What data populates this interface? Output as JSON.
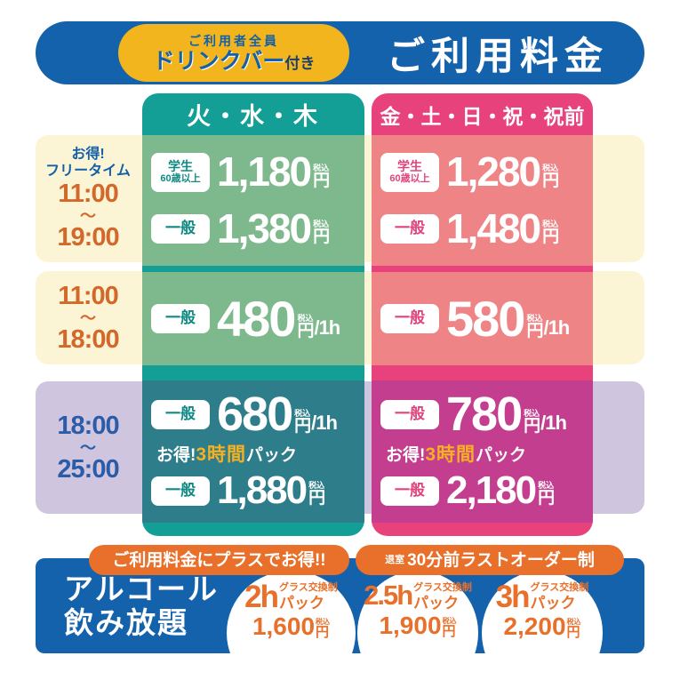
{
  "header": {
    "badge": {
      "line1": "ご利用者全員",
      "line2_main": "ドリンクバー",
      "line2_suffix": "付き"
    },
    "title": "ご利用料金"
  },
  "table": {
    "columns": {
      "weekday": "火・水・木",
      "weekend": "金・土・日・祝・祝前"
    },
    "labels": {
      "student": "学生",
      "student_sub": "60歳以上",
      "general": "一般",
      "tax": "税込",
      "yen": "円",
      "per_hour": "/1h",
      "pack_prefix": "お得!",
      "pack_highlight": "3時間",
      "pack_suffix": "パック"
    },
    "time_slots": {
      "freetime": {
        "note1": "お得!",
        "note2": "フリータイム",
        "start": "11:00",
        "tilde": "〜",
        "end": "19:00"
      },
      "day": {
        "start": "11:00",
        "tilde": "〜",
        "end": "18:00"
      },
      "night": {
        "start": "18:00",
        "tilde": "〜",
        "end": "25:00"
      }
    },
    "prices": {
      "weekday": {
        "freetime_student": "1,180",
        "freetime_general": "1,380",
        "day_general": "480",
        "night_general": "680",
        "night_pack_general": "1,880"
      },
      "weekend": {
        "freetime_student": "1,280",
        "freetime_general": "1,480",
        "day_general": "580",
        "night_general": "780",
        "night_pack_general": "2,180"
      }
    }
  },
  "footer": {
    "badge_left": "ご利用料金にプラスでお得!!",
    "badge_right_small": "退室",
    "badge_right": "30分前ラストオーダー制",
    "title_line1": "アルコール",
    "title_line2": "飲み放題",
    "glass_note": "グラス交換制",
    "pack_suffix": "パック",
    "tax": "税込",
    "yen": "円",
    "packs": [
      {
        "duration": "2h",
        "price": "1,600"
      },
      {
        "duration": "2.5h",
        "price": "1,900"
      },
      {
        "duration": "3h",
        "price": "2,200"
      }
    ]
  },
  "colors": {
    "header_blue": "#1562ac",
    "badge_yellow": "#f2b51d",
    "weekday_base": "#139e96",
    "weekday_light": "#7db98c",
    "weekday_dark": "#2d7e8a",
    "weekend_base": "#e8427d",
    "weekend_light": "#ee8485",
    "weekend_dark": "#c43e8f",
    "band_cream": "#fbf5d6",
    "band_lavender": "#cfc5df",
    "accent_orange": "#e8702a",
    "pack_highlight_yellow": "#f6b021"
  }
}
